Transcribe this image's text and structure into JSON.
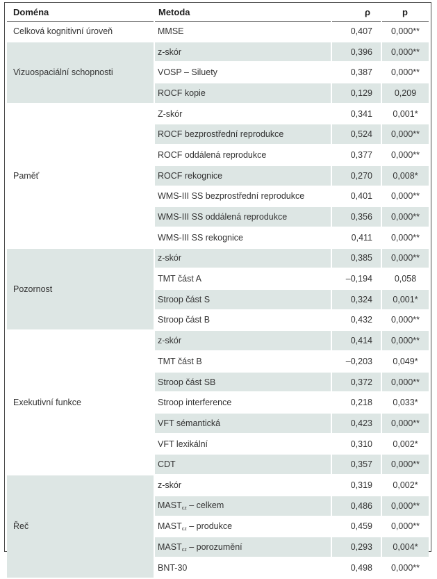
{
  "headers": {
    "domain": "Doména",
    "method": "Metoda",
    "rho": "ρ",
    "p": "p"
  },
  "groups": [
    {
      "domain": "Celková kognitivní úroveň",
      "rows": [
        {
          "method": "MMSE",
          "rho": "0,407",
          "p": "0,000**"
        }
      ]
    },
    {
      "domain": "Vizuospaciální schopnosti",
      "rows": [
        {
          "method": "z-skór",
          "rho": "0,396",
          "p": "0,000**"
        },
        {
          "method": "VOSP – Siluety",
          "rho": "0,387",
          "p": "0,000**"
        },
        {
          "method": "ROCF kopie",
          "rho": "0,129",
          "p": "0,209"
        }
      ]
    },
    {
      "domain": "Paměť",
      "rows": [
        {
          "method": "Z-skór",
          "rho": "0,341",
          "p": "0,001*"
        },
        {
          "method": "ROCF bezprostřední reprodukce",
          "rho": "0,524",
          "p": "0,000**"
        },
        {
          "method": "ROCF oddálená reprodukce",
          "rho": "0,377",
          "p": "0,000**"
        },
        {
          "method": "ROCF rekognice",
          "rho": "0,270",
          "p": "0,008*"
        },
        {
          "method": "WMS-III SS bezprostřední reprodukce",
          "rho": "0,401",
          "p": "0,000**"
        },
        {
          "method": "WMS-III SS oddálená reprodukce",
          "rho": "0,356",
          "p": "0,000**"
        },
        {
          "method": "WMS-III SS rekognice",
          "rho": "0,411",
          "p": "0,000**"
        }
      ]
    },
    {
      "domain": "Pozornost",
      "rows": [
        {
          "method": "z-skór",
          "rho": "0,385",
          "p": "0,000**"
        },
        {
          "method": "TMT část A",
          "rho": "–0,194",
          "p": "0,058"
        },
        {
          "method": "Stroop část S",
          "rho": "0,324",
          "p": "0,001*"
        },
        {
          "method": "Stroop část B",
          "rho": "0,432",
          "p": "0,000**"
        }
      ]
    },
    {
      "domain": "Exekutivní funkce",
      "rows": [
        {
          "method": "z-skór",
          "rho": "0,414",
          "p": "0,000**"
        },
        {
          "method": "TMT část B",
          "rho": "–0,203",
          "p": "0,049*"
        },
        {
          "method": "Stroop část SB",
          "rho": "0,372",
          "p": "0,000**"
        },
        {
          "method": "Stroop interference",
          "rho": "0,218",
          "p": "0,033*"
        },
        {
          "method": "VFT sémantická",
          "rho": "0,423",
          "p": "0,000**"
        },
        {
          "method": "VFT lexikální",
          "rho": "0,310",
          "p": "0,002*"
        },
        {
          "method": "CDT",
          "rho": "0,357",
          "p": "0,000**"
        }
      ]
    },
    {
      "domain": "Řeč",
      "rows": [
        {
          "method": "z-skór",
          "rho": "0,319",
          "p": "0,002*"
        },
        {
          "method": "MAST",
          "sub": "cz",
          "suffix": " – celkem",
          "rho": "0,486",
          "p": "0,000**"
        },
        {
          "method": "MAST",
          "sub": "cz",
          "suffix": " – produkce",
          "rho": "0,459",
          "p": "0,000**"
        },
        {
          "method": "MAST",
          "sub": "cz",
          "suffix": " – porozumění",
          "rho": "0,293",
          "p": "0,004*"
        },
        {
          "method": "BNT-30",
          "rho": "0,498",
          "p": "0,000**"
        }
      ]
    }
  ]
}
